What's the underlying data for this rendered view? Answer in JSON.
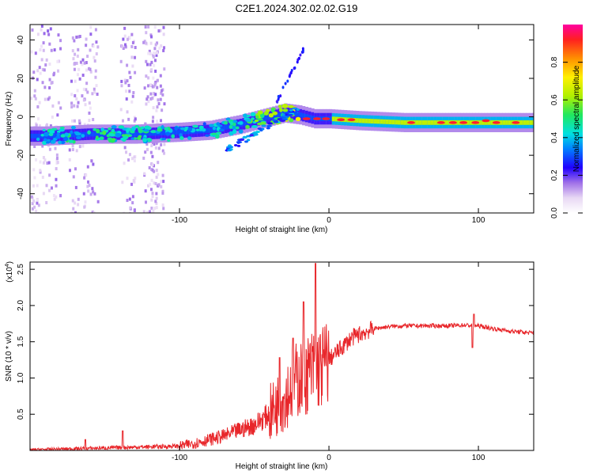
{
  "title": "C2E1.2024.302.02.02.G19",
  "colors": {
    "line": "#e8262a",
    "axis": "#000000",
    "background": "#ffffff"
  },
  "chart_data": [
    {
      "type": "heatmap",
      "title": "C2E1.2024.302.02.02.G19",
      "xlabel": "Height of straight line (km)",
      "ylabel": "Frequency (Hz)",
      "xlim": [
        -200,
        137
      ],
      "ylim": [
        -50,
        48
      ],
      "x_ticks": [
        {
          "value": -100,
          "label": "-100"
        },
        {
          "value": 0,
          "label": "0"
        },
        {
          "value": 100,
          "label": "100"
        }
      ],
      "y_ticks": [
        {
          "value": 40,
          "label": "40"
        },
        {
          "value": 20,
          "label": "20"
        },
        {
          "value": 0,
          "label": "0"
        },
        {
          "value": -20,
          "label": "-20"
        },
        {
          "value": -40,
          "label": "-40"
        }
      ],
      "colorbar": {
        "label": "Normalized spectral amplitude",
        "range": [
          0,
          1
        ],
        "ticks": [
          {
            "value": 0.0,
            "label": "0.0"
          },
          {
            "value": 0.2,
            "label": "0.2"
          },
          {
            "value": 0.4,
            "label": "0.4"
          },
          {
            "value": 0.6,
            "label": "0.6"
          },
          {
            "value": 0.8,
            "label": "0.8"
          }
        ]
      },
      "ridge": {
        "description_points_x": [
          -190,
          -160,
          -130,
          -100,
          -80,
          -60,
          -40,
          -30,
          -20,
          -10,
          0,
          20,
          50,
          80,
          100,
          130
        ],
        "description_points_freq": [
          -10,
          -9,
          -9,
          -8,
          -7,
          -4,
          0,
          2,
          1,
          -1,
          -1,
          -2,
          -3,
          -3,
          -3,
          -3
        ],
        "description_points_amp": [
          0.3,
          0.35,
          0.35,
          0.3,
          0.3,
          0.35,
          0.45,
          0.5,
          0.6,
          0.85,
          0.9,
          0.95,
          0.95,
          0.9,
          0.9,
          0.85
        ]
      }
    },
    {
      "type": "line",
      "xlabel": "Height of straight line (km)",
      "ylabel": "SNR (10 * v/v)",
      "y_multiplier": "(x10",
      "y_multiplier_exp": "4",
      "y_multiplier_close": ")",
      "xlim": [
        -200,
        137
      ],
      "ylim": [
        0,
        2.6
      ],
      "x_ticks": [
        {
          "value": -100,
          "label": "-100"
        },
        {
          "value": 0,
          "label": "0"
        },
        {
          "value": 100,
          "label": "100"
        }
      ],
      "y_ticks": [
        {
          "value": 0.5,
          "label": "0.5"
        },
        {
          "value": 1.0,
          "label": "1.0"
        },
        {
          "value": 1.5,
          "label": "1.5"
        },
        {
          "value": 2.0,
          "label": "2.0"
        },
        {
          "value": 2.5,
          "label": "2.5"
        }
      ],
      "series": [
        {
          "name": "SNR",
          "x": [
            -200,
            -180,
            -160,
            -140,
            -120,
            -100,
            -90,
            -80,
            -70,
            -60,
            -50,
            -40,
            -35,
            -30,
            -25,
            -20,
            -15,
            -10,
            -5,
            0,
            5,
            10,
            15,
            20,
            30,
            40,
            50,
            60,
            70,
            80,
            90,
            100,
            110,
            120,
            130,
            137
          ],
          "values": [
            0.01,
            0.02,
            0.03,
            0.04,
            0.05,
            0.06,
            0.1,
            0.15,
            0.2,
            0.28,
            0.35,
            0.5,
            0.62,
            0.72,
            0.9,
            1.0,
            1.05,
            1.12,
            1.15,
            1.25,
            1.35,
            1.45,
            1.55,
            1.6,
            1.68,
            1.71,
            1.72,
            1.72,
            1.72,
            1.72,
            1.73,
            1.72,
            1.68,
            1.65,
            1.63,
            1.62
          ],
          "peaks": [
            {
              "x": -138,
              "value": 0.27
            },
            {
              "x": -163,
              "value": 0.15
            },
            {
              "x": -33,
              "value": 1.28
            },
            {
              "x": -24,
              "value": 1.55
            },
            {
              "x": -17,
              "value": 2.05
            },
            {
              "x": -9,
              "value": 2.58
            },
            {
              "x": 97,
              "value": 1.88
            },
            {
              "x": 96,
              "value": 1.42
            }
          ]
        }
      ]
    }
  ]
}
